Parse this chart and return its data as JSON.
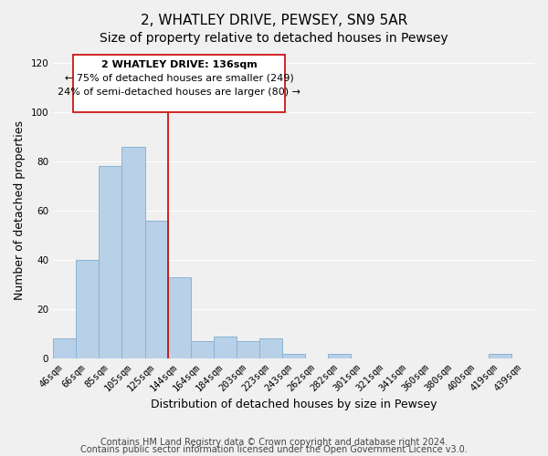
{
  "title": "2, WHATLEY DRIVE, PEWSEY, SN9 5AR",
  "subtitle": "Size of property relative to detached houses in Pewsey",
  "xlabel": "Distribution of detached houses by size in Pewsey",
  "ylabel": "Number of detached properties",
  "categories": [
    "46sqm",
    "66sqm",
    "85sqm",
    "105sqm",
    "125sqm",
    "144sqm",
    "164sqm",
    "184sqm",
    "203sqm",
    "223sqm",
    "243sqm",
    "262sqm",
    "282sqm",
    "301sqm",
    "321sqm",
    "341sqm",
    "360sqm",
    "380sqm",
    "400sqm",
    "419sqm",
    "439sqm"
  ],
  "values": [
    8,
    40,
    78,
    86,
    56,
    33,
    7,
    9,
    7,
    8,
    2,
    0,
    2,
    0,
    0,
    0,
    0,
    0,
    0,
    2,
    0
  ],
  "bar_color": "#b8d0e8",
  "bar_edge_color": "#8ab4d4",
  "vline_color": "#cc0000",
  "vline_position": 4.5,
  "ylim": [
    0,
    120
  ],
  "yticks": [
    0,
    20,
    40,
    60,
    80,
    100,
    120
  ],
  "annotation_title": "2 WHATLEY DRIVE: 136sqm",
  "annotation_line1": "← 75% of detached houses are smaller (249)",
  "annotation_line2": "24% of semi-detached houses are larger (80) →",
  "footer1": "Contains HM Land Registry data © Crown copyright and database right 2024.",
  "footer2": "Contains public sector information licensed under the Open Government Licence v3.0.",
  "background_color": "#f0f0f0",
  "grid_color": "#ffffff",
  "title_fontsize": 11,
  "subtitle_fontsize": 10,
  "axis_label_fontsize": 9,
  "tick_fontsize": 7.5,
  "annotation_fontsize": 8,
  "footer_fontsize": 7
}
